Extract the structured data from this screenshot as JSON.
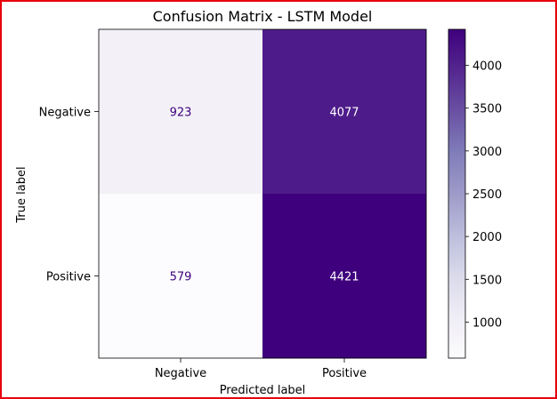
{
  "chart_data": {
    "type": "heatmap",
    "title": "Confusion Matrix - LSTM Model",
    "xlabel": "Predicted label",
    "ylabel": "True label",
    "x_categories": [
      "Negative",
      "Positive"
    ],
    "y_categories": [
      "Negative",
      "Positive"
    ],
    "values": [
      [
        923,
        4077
      ],
      [
        579,
        4421
      ]
    ],
    "colormap": "Purples",
    "color_low": "#fcfbfd",
    "color_high": "#3f007d",
    "colorbar": {
      "range": [
        579,
        4421
      ],
      "ticks": [
        1000,
        1500,
        2000,
        2500,
        3000,
        3500,
        4000
      ]
    }
  },
  "frame_border_color": "#e8000b"
}
